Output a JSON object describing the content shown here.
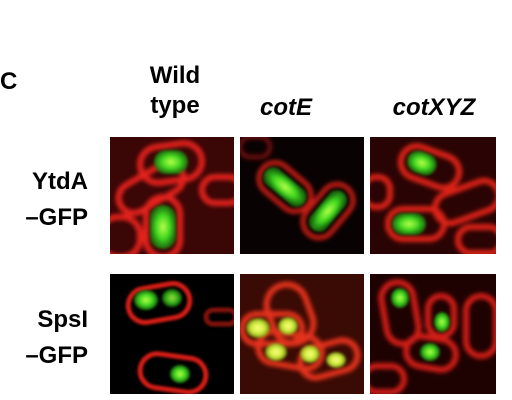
{
  "figure": {
    "panel_letter": "C",
    "columns": [
      {
        "line1": "Wild",
        "line2": "type"
      },
      {
        "line1": "",
        "line2": "cotE"
      },
      {
        "line1": "",
        "line2": "cotXYZ"
      }
    ],
    "rows": [
      {
        "line1": "YtdA",
        "line2": "–GFP"
      },
      {
        "line1": "SpsI",
        "line2": "–GFP"
      }
    ]
  }
}
